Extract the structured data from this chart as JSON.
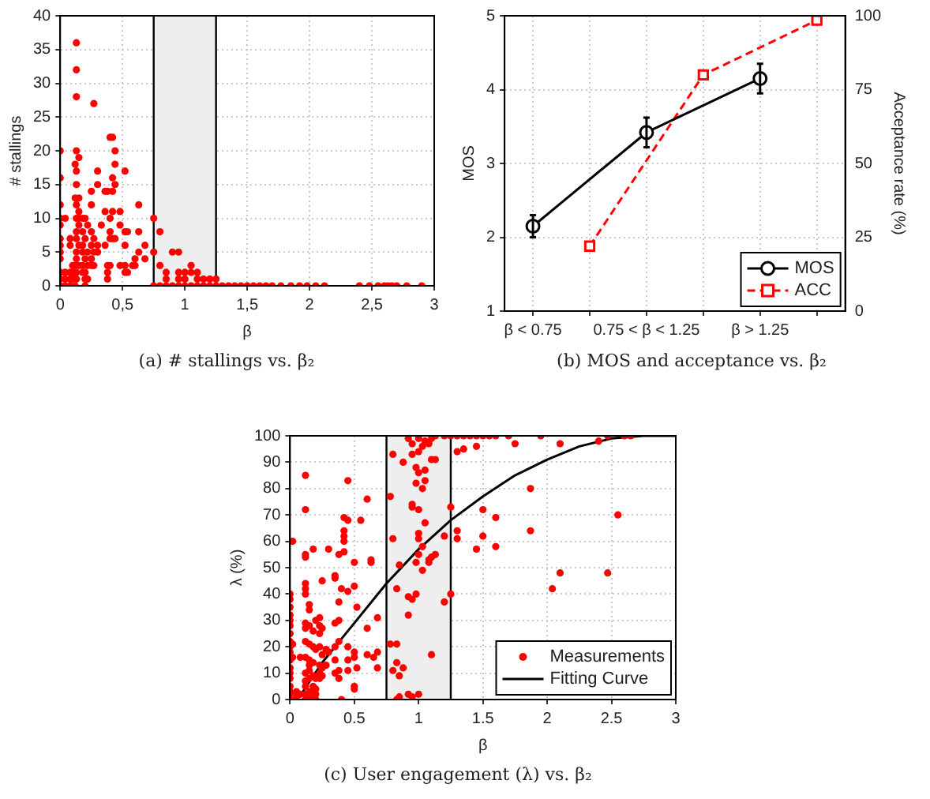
{
  "chart_data": [
    {
      "type": "scatter",
      "title": "(a) # stallings vs. β₂",
      "xlabel": "β",
      "ylabel": "# stallings",
      "xlim": [
        0,
        3
      ],
      "xticks": [
        0,
        {
          "value": 0.5,
          "label": "0,5"
        },
        1,
        {
          "value": 1.5,
          "label": "1,5"
        },
        2,
        {
          "value": 2.5,
          "label": "2,5"
        },
        3
      ],
      "ylim": [
        0,
        40
      ],
      "yticks": [
        0,
        5,
        10,
        15,
        20,
        25,
        30,
        35,
        40
      ],
      "grid": true,
      "bands": [
        {
          "axis": "x",
          "from": 0.75,
          "to": 1.25,
          "color": "#eeeeee"
        }
      ],
      "ref_lines": [
        {
          "axis": "x",
          "value": 0.75,
          "color": "#000000"
        },
        {
          "axis": "x",
          "value": 1.25,
          "color": "#000000"
        }
      ],
      "series": [
        {
          "color": "#ff0000",
          "marker": "circle",
          "x": [
            0,
            0,
            0,
            0,
            0,
            0,
            0,
            0,
            0,
            0,
            0,
            0,
            0.04,
            0.04,
            0.04,
            0.04,
            0.08,
            0.08,
            0.08,
            0.08,
            0.08,
            0.1,
            0.1,
            0.1,
            0.12,
            0.12,
            0.12,
            0.12,
            0.12,
            0.13,
            0.13,
            0.13,
            0.13,
            0.13,
            0.13,
            0.13,
            0.13,
            0.13,
            0.13,
            0.13,
            0.13,
            0.13,
            0.13,
            0.15,
            0.15,
            0.15,
            0.15,
            0.15,
            0.15,
            0.15,
            0.18,
            0.18,
            0.18,
            0.18,
            0.18,
            0.18,
            0.2,
            0.2,
            0.2,
            0.2,
            0.2,
            0.2,
            0.22,
            0.22,
            0.22,
            0.22,
            0.25,
            0.25,
            0.25,
            0.25,
            0.25,
            0.25,
            0.27,
            0.27,
            0.27,
            0.27,
            0.3,
            0.3,
            0.3,
            0.3,
            0.33,
            0.36,
            0.36,
            0.36,
            0.38,
            0.38,
            0.38,
            0.38,
            0.4,
            0.4,
            0.4,
            0.4,
            0.4,
            0.42,
            0.42,
            0.42,
            0.42,
            0.42,
            0.44,
            0.44,
            0.44,
            0.44,
            0.48,
            0.48,
            0.48,
            0.52,
            0.52,
            0.52,
            0.52,
            0.52,
            0.54,
            0.54,
            0.58,
            0.6,
            0.6,
            0.63,
            0.63,
            0.63,
            0.68,
            0.68,
            0.75,
            0.75,
            0.75,
            0.8,
            0.8,
            0.8,
            0.85,
            0.85,
            0.85,
            0.9,
            0.9,
            0.95,
            0.95,
            0.95,
            0.95,
            1.0,
            1.0,
            1.0,
            1.05,
            1.05,
            1.05,
            1.1,
            1.1,
            1.1,
            1.15,
            1.15,
            1.2,
            1.2,
            1.25,
            1.25,
            1.3,
            1.35,
            1.4,
            1.45,
            1.5,
            1.55,
            1.6,
            1.65,
            1.7,
            1.77,
            1.85,
            1.92,
            1.98,
            2.05,
            2.12,
            2.4,
            2.48,
            2.55,
            2.6,
            2.63,
            2.66,
            2.7,
            2.78,
            2.9
          ],
          "values": [
            20,
            16,
            12,
            10,
            9,
            7,
            6,
            5,
            4,
            2,
            1,
            0,
            10,
            2,
            1,
            0,
            7,
            6,
            2,
            1,
            0,
            3,
            2,
            1,
            18,
            13,
            3,
            2,
            0,
            36,
            32,
            28,
            20,
            17,
            15,
            12,
            10,
            8,
            7,
            5,
            4,
            2,
            1,
            19,
            13,
            11,
            10,
            9,
            6,
            3,
            10,
            8,
            6,
            5,
            3,
            2,
            10,
            7,
            4,
            2,
            1,
            0,
            9,
            5,
            3,
            1,
            14,
            12,
            8,
            6,
            4,
            3,
            27,
            7,
            5,
            3,
            17,
            15,
            6,
            5,
            9,
            14,
            11,
            6,
            14,
            3,
            2,
            1,
            22,
            10,
            8,
            7,
            3,
            22,
            16,
            14,
            11,
            7,
            20,
            18,
            15,
            7,
            11,
            9,
            3,
            17,
            8,
            6,
            3,
            2,
            8,
            2,
            3,
            4,
            3,
            12,
            8,
            5,
            6,
            4,
            10,
            5,
            0,
            8,
            3,
            0,
            2,
            1,
            0,
            5,
            0,
            5,
            2,
            1,
            0,
            2,
            1,
            0,
            3,
            2,
            0,
            2,
            1,
            0,
            1,
            0,
            1,
            0,
            1,
            0,
            0,
            0,
            0,
            0,
            0,
            0,
            0,
            0,
            0,
            0,
            0,
            0,
            0,
            0,
            0,
            0,
            0,
            0,
            0,
            0,
            0,
            0,
            0,
            0
          ]
        }
      ]
    },
    {
      "type": "line",
      "title": "(b) MOS and acceptance vs. β₂",
      "ylabel": "MOS",
      "y2label": "Acceptance rate (%)",
      "categories": [
        "β < 0.75",
        null,
        "0.75 < β < 1.25",
        null,
        "β > 1.25",
        null
      ],
      "ylim": [
        1,
        5
      ],
      "yticks": [
        1,
        2,
        3,
        4,
        5
      ],
      "y2lim": [
        0,
        100
      ],
      "y2ticks": [
        0,
        25,
        50,
        75,
        100
      ],
      "grid": true,
      "legend": "bottom right",
      "series": [
        {
          "name": "MOS",
          "color": "#000000",
          "marker": "circle",
          "line_style": "solid",
          "values": [
            2.15,
            null,
            3.42,
            null,
            4.15,
            null
          ],
          "errors": [
            0.15,
            null,
            0.2,
            null,
            0.2,
            null
          ]
        },
        {
          "name": "ACC",
          "color": "#ff0000",
          "marker": "square",
          "line_style": "dashed",
          "axis": "y2",
          "values": [
            null,
            22,
            null,
            80,
            null,
            98.5
          ]
        }
      ]
    },
    {
      "type": "scatter",
      "title": "(c) User engagement (λ) vs. β₂",
      "xlabel": "β",
      "ylabel": "λ (%)",
      "xlim": [
        0,
        3
      ],
      "xticks": [
        0,
        0.5,
        1,
        1.5,
        2,
        2.5,
        3
      ],
      "ylim": [
        0,
        100
      ],
      "yticks": [
        0,
        10,
        20,
        30,
        40,
        50,
        60,
        70,
        80,
        90,
        100
      ],
      "grid": true,
      "legend": "bottom right",
      "bands": [
        {
          "axis": "x",
          "from": 0.75,
          "to": 1.25,
          "color": "#eeeeee"
        }
      ],
      "ref_lines": [
        {
          "axis": "x",
          "value": 0.75,
          "color": "#000000"
        },
        {
          "axis": "x",
          "value": 1.25,
          "color": "#000000"
        }
      ],
      "series": [
        {
          "name": "Measurements",
          "color": "#ff0000",
          "marker": "circle",
          "x": [
            0,
            0,
            0,
            0,
            0,
            0,
            0,
            0,
            0,
            0,
            0,
            0,
            0,
            0,
            0,
            0,
            0,
            0,
            0.02,
            0.02,
            0.02,
            0.05,
            0.05,
            0.08,
            0.08,
            0.12,
            0.12,
            0.12,
            0.12,
            0.12,
            0.12,
            0.12,
            0.12,
            0.12,
            0.12,
            0.12,
            0.12,
            0.12,
            0.12,
            0.12,
            0.12,
            0.15,
            0.15,
            0.15,
            0.15,
            0.15,
            0.15,
            0.15,
            0.15,
            0.15,
            0.15,
            0.18,
            0.18,
            0.18,
            0.18,
            0.18,
            0.18,
            0.18,
            0.2,
            0.2,
            0.2,
            0.2,
            0.2,
            0.2,
            0.23,
            0.23,
            0.23,
            0.23,
            0.23,
            0.23,
            0.23,
            0.25,
            0.25,
            0.25,
            0.25,
            0.25,
            0.28,
            0.28,
            0.3,
            0.3,
            0.35,
            0.35,
            0.35,
            0.35,
            0.35,
            0.35,
            0.38,
            0.38,
            0.38,
            0.38,
            0.38,
            0.38,
            0.4,
            0.4,
            0.42,
            0.42,
            0.42,
            0.42,
            0.42,
            0.45,
            0.45,
            0.45,
            0.45,
            0.45,
            0.45,
            0.5,
            0.5,
            0.5,
            0.5,
            0.5,
            0.5,
            0.52,
            0.52,
            0.55,
            0.6,
            0.6,
            0.6,
            0.63,
            0.63,
            0.65,
            0.68,
            0.68,
            0.68,
            0.78,
            0.78,
            0.8,
            0.8,
            0.8,
            0.83,
            0.83,
            0.83,
            0.83,
            0.85,
            0.85,
            0.85,
            0.88,
            0.88,
            0.92,
            0.92,
            0.92,
            0.92,
            0.95,
            0.95,
            0.95,
            0.95,
            0.95,
            0.95,
            0.98,
            0.98,
            0.98,
            0.98,
            1.0,
            1.0,
            1.0,
            1.0,
            1.0,
            1.0,
            1.0,
            1.0,
            1.03,
            1.03,
            1.03,
            1.03,
            1.05,
            1.05,
            1.05,
            1.05,
            1.08,
            1.08,
            1.08,
            1.1,
            1.1,
            1.1,
            1.1,
            1.13,
            1.13,
            1.13,
            1.2,
            1.2,
            1.2,
            1.25,
            1.25,
            1.25,
            1.3,
            1.3,
            1.3,
            1.3,
            1.35,
            1.35,
            1.4,
            1.45,
            1.45,
            1.45,
            1.5,
            1.5,
            1.5,
            1.55,
            1.6,
            1.6,
            1.6,
            1.7,
            1.75,
            1.87,
            1.87,
            1.95,
            2.04,
            2.1,
            2.1,
            2.4,
            2.47,
            2.47,
            2.55,
            2.6,
            2.65
          ],
          "values": [
            40,
            38,
            35,
            32,
            30,
            28,
            25,
            22,
            20,
            18,
            15,
            12,
            10,
            8,
            5,
            3,
            2,
            0,
            60,
            21,
            16,
            3,
            1,
            16,
            2,
            85,
            72,
            55,
            54,
            44,
            42,
            40,
            29,
            27,
            22,
            16,
            10,
            7,
            5,
            2,
            0,
            36,
            34,
            28,
            21,
            15,
            13,
            11,
            8,
            3,
            1,
            57,
            26,
            20,
            14,
            9,
            5,
            2,
            30,
            19,
            8,
            4,
            2,
            0,
            31,
            28,
            25,
            20,
            13,
            10,
            8,
            45,
            27,
            17,
            12,
            9,
            19,
            13,
            57,
            18,
            47,
            46,
            29,
            20,
            15,
            10,
            55,
            37,
            30,
            22,
            11,
            8,
            42,
            0,
            69,
            64,
            62,
            60,
            56,
            83,
            68,
            41,
            20,
            15,
            11,
            52,
            43,
            18,
            16,
            5,
            4,
            35,
            12,
            68,
            76,
            27,
            17,
            53,
            52,
            16,
            31,
            18,
            12,
            77,
            21,
            93,
            61,
            11,
            42,
            21,
            14,
            0,
            51,
            9,
            1,
            90,
            12,
            99,
            39,
            32,
            2,
            97,
            93,
            74,
            73,
            38,
            1,
            88,
            82,
            52,
            40,
            99,
            94,
            86,
            72,
            63,
            61,
            55,
            2,
            96,
            80,
            58,
            49,
            98,
            87,
            83,
            67,
            97,
            53,
            52,
            99,
            91,
            54,
            17,
            100,
            91,
            55,
            100,
            62,
            37,
            100,
            73,
            40,
            100,
            94,
            64,
            61,
            100,
            95,
            100,
            100,
            96,
            57,
            100,
            72,
            62,
            100,
            100,
            69,
            58,
            100,
            97,
            80,
            64,
            100,
            42,
            97,
            48,
            98,
            100,
            48,
            70,
            100,
            100
          ]
        },
        {
          "name": "Fitting Curve",
          "type": "line",
          "color": "#000000",
          "marker": "none",
          "line_style": "solid",
          "x": [
            0.05,
            0.1,
            0.25,
            0.5,
            0.75,
            1.0,
            1.25,
            1.5,
            1.75,
            2.0,
            2.25,
            2.5,
            2.75,
            3.0
          ],
          "values": [
            0,
            3,
            14,
            29,
            44,
            57,
            68,
            77,
            85,
            91,
            96,
            99,
            100,
            100
          ]
        }
      ]
    }
  ]
}
